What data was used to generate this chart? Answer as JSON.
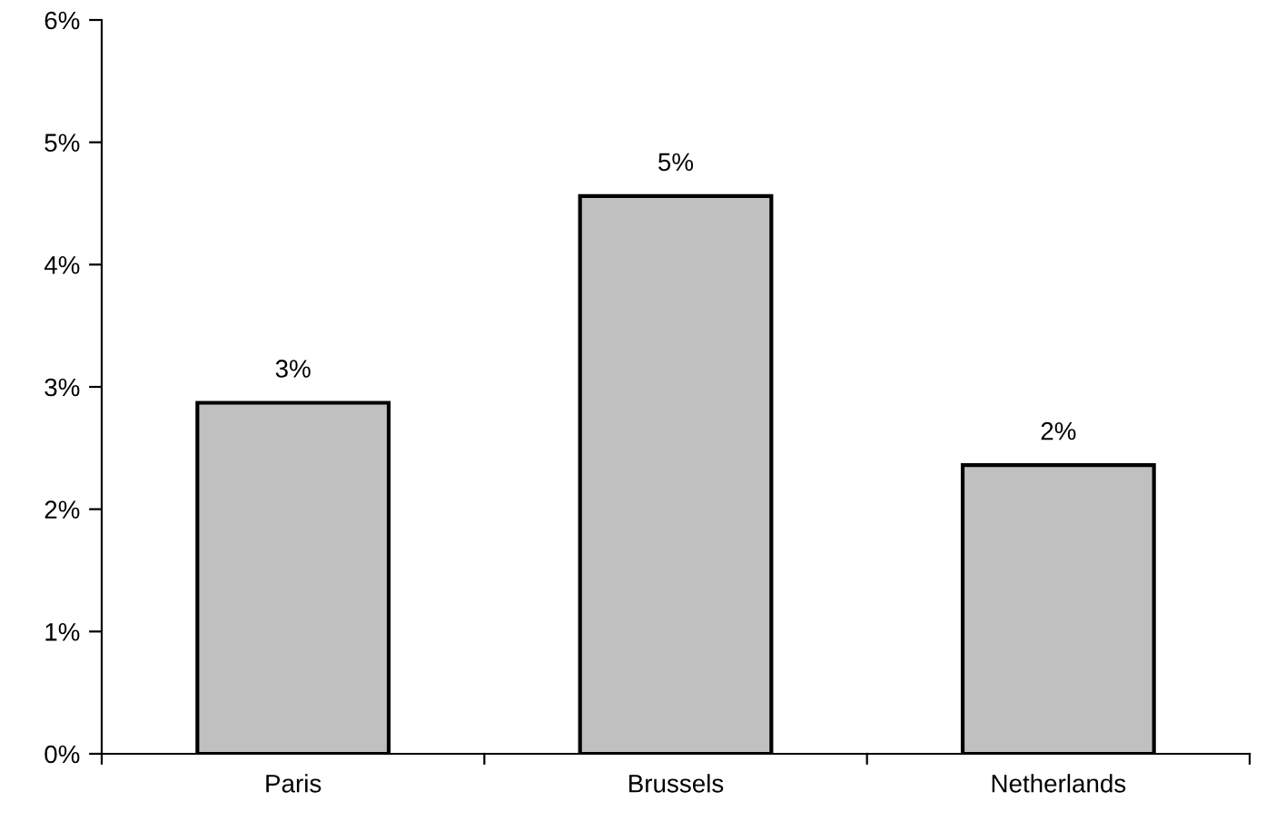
{
  "chart_data": {
    "type": "bar",
    "categories": [
      "Paris",
      "Brussels",
      "Netherlands"
    ],
    "values": [
      2.87,
      4.56,
      2.36
    ],
    "value_labels": [
      "3%",
      "5%",
      "2%"
    ],
    "color": "#c0c0c0",
    "ylim": [
      0,
      6
    ],
    "yticks": [
      {
        "value": 0,
        "label": "0%"
      },
      {
        "value": 1,
        "label": "1%"
      },
      {
        "value": 2,
        "label": "2%"
      },
      {
        "value": 3,
        "label": "3%"
      },
      {
        "value": 4,
        "label": "4%"
      },
      {
        "value": 5,
        "label": "5%"
      },
      {
        "value": 6,
        "label": "6%"
      }
    ],
    "grid": false,
    "legend": false
  }
}
